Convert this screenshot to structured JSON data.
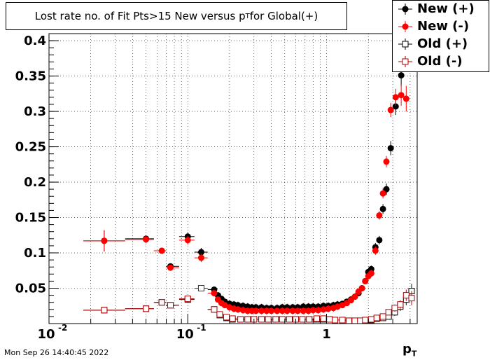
{
  "title": {
    "prefix": "Lost rate no. of Fit Pts>15 New versus p",
    "sub": "T",
    "suffix": " for Global(+)"
  },
  "timestamp": "Mon Sep 26 14:40:45 2022",
  "x_unit": {
    "main": "p",
    "sub": "T"
  },
  "colors": {
    "black": "#000000",
    "red": "#ff0000",
    "darkred": "#b00000",
    "grid": "#000000"
  },
  "chart_data": {
    "type": "scatter",
    "xscale": "log",
    "xlim": [
      0.01,
      4.5
    ],
    "ylim": [
      0.0,
      0.41
    ],
    "grid": true,
    "legend_position": "top-right",
    "y_ticks": [
      0.05,
      0.1,
      0.15,
      0.2,
      0.25,
      0.3,
      0.35,
      0.4
    ],
    "y_tick_labels": [
      "0.05",
      "0.1",
      "0.15",
      "0.2",
      "0.25",
      "0.3",
      "0.35",
      "0.4"
    ],
    "x_ticks": [
      {
        "value": 0.01,
        "base": "10",
        "exp": "-2"
      },
      {
        "value": 0.1,
        "base": "10",
        "exp": "-1"
      },
      {
        "value": 1,
        "base": "1",
        "exp": ""
      }
    ],
    "series": [
      {
        "name": "New (+)",
        "marker": "filled-circle",
        "color": "#000000",
        "points": [
          [
            0.025,
            0.117,
            0.015
          ],
          [
            0.05,
            0.12,
            0.005
          ],
          [
            0.065,
            0.103,
            0.004
          ],
          [
            0.075,
            0.081,
            0.003
          ],
          [
            0.1,
            0.123,
            0.006
          ],
          [
            0.125,
            0.101,
            0.006
          ],
          [
            0.155,
            0.048,
            0.004
          ],
          [
            0.165,
            0.04,
            0.004
          ],
          [
            0.175,
            0.035,
            0.004
          ],
          [
            0.185,
            0.031,
            0.004
          ],
          [
            0.2,
            0.028,
            0.005
          ],
          [
            0.215,
            0.027,
            0.005
          ],
          [
            0.23,
            0.026,
            0.005
          ],
          [
            0.25,
            0.025,
            0.005
          ],
          [
            0.27,
            0.024,
            0.005
          ],
          [
            0.29,
            0.023,
            0.005
          ],
          [
            0.31,
            0.023,
            0.005
          ],
          [
            0.34,
            0.023,
            0.005
          ],
          [
            0.37,
            0.022,
            0.005
          ],
          [
            0.4,
            0.022,
            0.005
          ],
          [
            0.44,
            0.022,
            0.005
          ],
          [
            0.48,
            0.023,
            0.005
          ],
          [
            0.52,
            0.023,
            0.005
          ],
          [
            0.57,
            0.023,
            0.005
          ],
          [
            0.62,
            0.023,
            0.005
          ],
          [
            0.68,
            0.024,
            0.005
          ],
          [
            0.74,
            0.024,
            0.005
          ],
          [
            0.8,
            0.024,
            0.005
          ],
          [
            0.87,
            0.024,
            0.005
          ],
          [
            0.95,
            0.025,
            0.005
          ],
          [
            1.03,
            0.025,
            0.005
          ],
          [
            1.12,
            0.026,
            0.005
          ],
          [
            1.2,
            0.027,
            0.005
          ],
          [
            1.3,
            0.028,
            0.004
          ],
          [
            1.4,
            0.031,
            0.004
          ],
          [
            1.5,
            0.034,
            0.004
          ],
          [
            1.6,
            0.038,
            0.004
          ],
          [
            1.7,
            0.043,
            0.004
          ],
          [
            1.8,
            0.05,
            0.004
          ],
          [
            1.9,
            0.06,
            0.004
          ],
          [
            2.0,
            0.073,
            0.005
          ],
          [
            2.1,
            0.077,
            0.005
          ],
          [
            2.25,
            0.108,
            0.006
          ],
          [
            2.4,
            0.118,
            0.006
          ],
          [
            2.55,
            0.162,
            0.007
          ],
          [
            2.7,
            0.19,
            0.008
          ],
          [
            2.9,
            0.248,
            0.01
          ],
          [
            3.15,
            0.307,
            0.012
          ],
          [
            3.45,
            0.351,
            0.015
          ]
        ]
      },
      {
        "name": "New (-)",
        "marker": "filled-circle",
        "color": "#ff0000",
        "points": [
          [
            0.025,
            0.117,
            0.015
          ],
          [
            0.05,
            0.119,
            0.005
          ],
          [
            0.065,
            0.103,
            0.004
          ],
          [
            0.075,
            0.079,
            0.003
          ],
          [
            0.1,
            0.118,
            0.006
          ],
          [
            0.125,
            0.093,
            0.006
          ],
          [
            0.155,
            0.043,
            0.004
          ],
          [
            0.165,
            0.034,
            0.004
          ],
          [
            0.175,
            0.029,
            0.004
          ],
          [
            0.185,
            0.026,
            0.004
          ],
          [
            0.2,
            0.023,
            0.005
          ],
          [
            0.215,
            0.021,
            0.005
          ],
          [
            0.23,
            0.02,
            0.005
          ],
          [
            0.25,
            0.019,
            0.005
          ],
          [
            0.27,
            0.018,
            0.005
          ],
          [
            0.29,
            0.018,
            0.005
          ],
          [
            0.31,
            0.018,
            0.005
          ],
          [
            0.34,
            0.018,
            0.005
          ],
          [
            0.37,
            0.018,
            0.005
          ],
          [
            0.4,
            0.018,
            0.005
          ],
          [
            0.44,
            0.018,
            0.005
          ],
          [
            0.48,
            0.018,
            0.005
          ],
          [
            0.52,
            0.018,
            0.005
          ],
          [
            0.57,
            0.018,
            0.005
          ],
          [
            0.62,
            0.018,
            0.005
          ],
          [
            0.68,
            0.018,
            0.005
          ],
          [
            0.74,
            0.018,
            0.005
          ],
          [
            0.8,
            0.019,
            0.005
          ],
          [
            0.87,
            0.019,
            0.005
          ],
          [
            0.95,
            0.02,
            0.005
          ],
          [
            1.03,
            0.021,
            0.005
          ],
          [
            1.12,
            0.022,
            0.005
          ],
          [
            1.2,
            0.024,
            0.005
          ],
          [
            1.3,
            0.026,
            0.004
          ],
          [
            1.4,
            0.029,
            0.004
          ],
          [
            1.5,
            0.033,
            0.004
          ],
          [
            1.6,
            0.038,
            0.004
          ],
          [
            1.7,
            0.045,
            0.004
          ],
          [
            1.8,
            0.05,
            0.004
          ],
          [
            1.9,
            0.06,
            0.004
          ],
          [
            2.0,
            0.067,
            0.005
          ],
          [
            2.1,
            0.071,
            0.005
          ],
          [
            2.25,
            0.103,
            0.006
          ],
          [
            2.4,
            0.153,
            0.006
          ],
          [
            2.55,
            0.184,
            0.007
          ],
          [
            2.7,
            0.229,
            0.008
          ],
          [
            2.9,
            0.302,
            0.01
          ],
          [
            3.15,
            0.32,
            0.012
          ],
          [
            3.45,
            0.323,
            0.015
          ],
          [
            3.75,
            0.318,
            0.018
          ]
        ]
      },
      {
        "name": "Old (+)",
        "marker": "open-square",
        "color": "#000000",
        "points": [
          [
            0.025,
            0.019,
            0.004
          ],
          [
            0.05,
            0.021,
            0.004
          ],
          [
            0.065,
            0.03,
            0.004
          ],
          [
            0.075,
            0.026,
            0.003
          ],
          [
            0.1,
            0.034,
            0.004
          ],
          [
            0.125,
            0.05,
            0.004
          ],
          [
            0.155,
            0.02,
            0.004
          ],
          [
            0.17,
            0.012,
            0.004
          ],
          [
            0.19,
            0.008,
            0.004
          ],
          [
            0.21,
            0.006,
            0.004
          ],
          [
            0.24,
            0.006,
            0.004
          ],
          [
            0.27,
            0.006,
            0.004
          ],
          [
            0.3,
            0.006,
            0.004
          ],
          [
            0.34,
            0.006,
            0.004
          ],
          [
            0.38,
            0.006,
            0.004
          ],
          [
            0.43,
            0.006,
            0.004
          ],
          [
            0.48,
            0.006,
            0.004
          ],
          [
            0.54,
            0.006,
            0.004
          ],
          [
            0.6,
            0.006,
            0.004
          ],
          [
            0.67,
            0.006,
            0.004
          ],
          [
            0.75,
            0.006,
            0.004
          ],
          [
            0.85,
            0.006,
            0.004
          ],
          [
            0.95,
            0.006,
            0.004
          ],
          [
            1.05,
            0.006,
            0.004
          ],
          [
            1.15,
            0.005,
            0.004
          ],
          [
            1.3,
            0.005,
            0.004
          ],
          [
            1.45,
            0.004,
            0.004
          ],
          [
            1.6,
            0.004,
            0.004
          ],
          [
            1.75,
            0.004,
            0.004
          ],
          [
            1.9,
            0.004,
            0.004
          ],
          [
            2.1,
            0.005,
            0.004
          ],
          [
            2.3,
            0.007,
            0.004
          ],
          [
            2.55,
            0.008,
            0.004
          ],
          [
            2.8,
            0.01,
            0.004
          ],
          [
            3.1,
            0.016,
            0.005
          ],
          [
            3.4,
            0.024,
            0.006
          ],
          [
            3.75,
            0.034,
            0.008
          ],
          [
            4.1,
            0.046,
            0.01
          ]
        ]
      },
      {
        "name": "Old (-)",
        "marker": "open-square",
        "color": "#b00000",
        "points": [
          [
            0.025,
            0.019,
            0.004
          ],
          [
            0.05,
            0.021,
            0.004
          ],
          [
            0.065,
            0.03,
            0.004
          ],
          [
            0.075,
            0.026,
            0.003
          ],
          [
            0.1,
            0.035,
            0.004
          ],
          [
            0.125,
            0.05,
            0.004
          ],
          [
            0.155,
            0.02,
            0.004
          ],
          [
            0.17,
            0.013,
            0.004
          ],
          [
            0.19,
            0.009,
            0.004
          ],
          [
            0.21,
            0.007,
            0.004
          ],
          [
            0.24,
            0.006,
            0.004
          ],
          [
            0.27,
            0.006,
            0.004
          ],
          [
            0.3,
            0.006,
            0.004
          ],
          [
            0.34,
            0.006,
            0.004
          ],
          [
            0.38,
            0.006,
            0.004
          ],
          [
            0.43,
            0.006,
            0.004
          ],
          [
            0.48,
            0.006,
            0.004
          ],
          [
            0.54,
            0.006,
            0.004
          ],
          [
            0.6,
            0.006,
            0.004
          ],
          [
            0.67,
            0.006,
            0.004
          ],
          [
            0.75,
            0.006,
            0.004
          ],
          [
            0.85,
            0.007,
            0.004
          ],
          [
            0.95,
            0.007,
            0.004
          ],
          [
            1.05,
            0.006,
            0.004
          ],
          [
            1.15,
            0.005,
            0.004
          ],
          [
            1.3,
            0.005,
            0.004
          ],
          [
            1.45,
            0.004,
            0.004
          ],
          [
            1.6,
            0.004,
            0.004
          ],
          [
            1.75,
            0.004,
            0.004
          ],
          [
            1.9,
            0.005,
            0.004
          ],
          [
            2.1,
            0.006,
            0.004
          ],
          [
            2.3,
            0.008,
            0.004
          ],
          [
            2.55,
            0.01,
            0.004
          ],
          [
            2.8,
            0.016,
            0.004
          ],
          [
            3.1,
            0.022,
            0.005
          ],
          [
            3.4,
            0.027,
            0.006
          ],
          [
            3.75,
            0.04,
            0.008
          ],
          [
            4.1,
            0.036,
            0.01
          ]
        ]
      }
    ]
  }
}
